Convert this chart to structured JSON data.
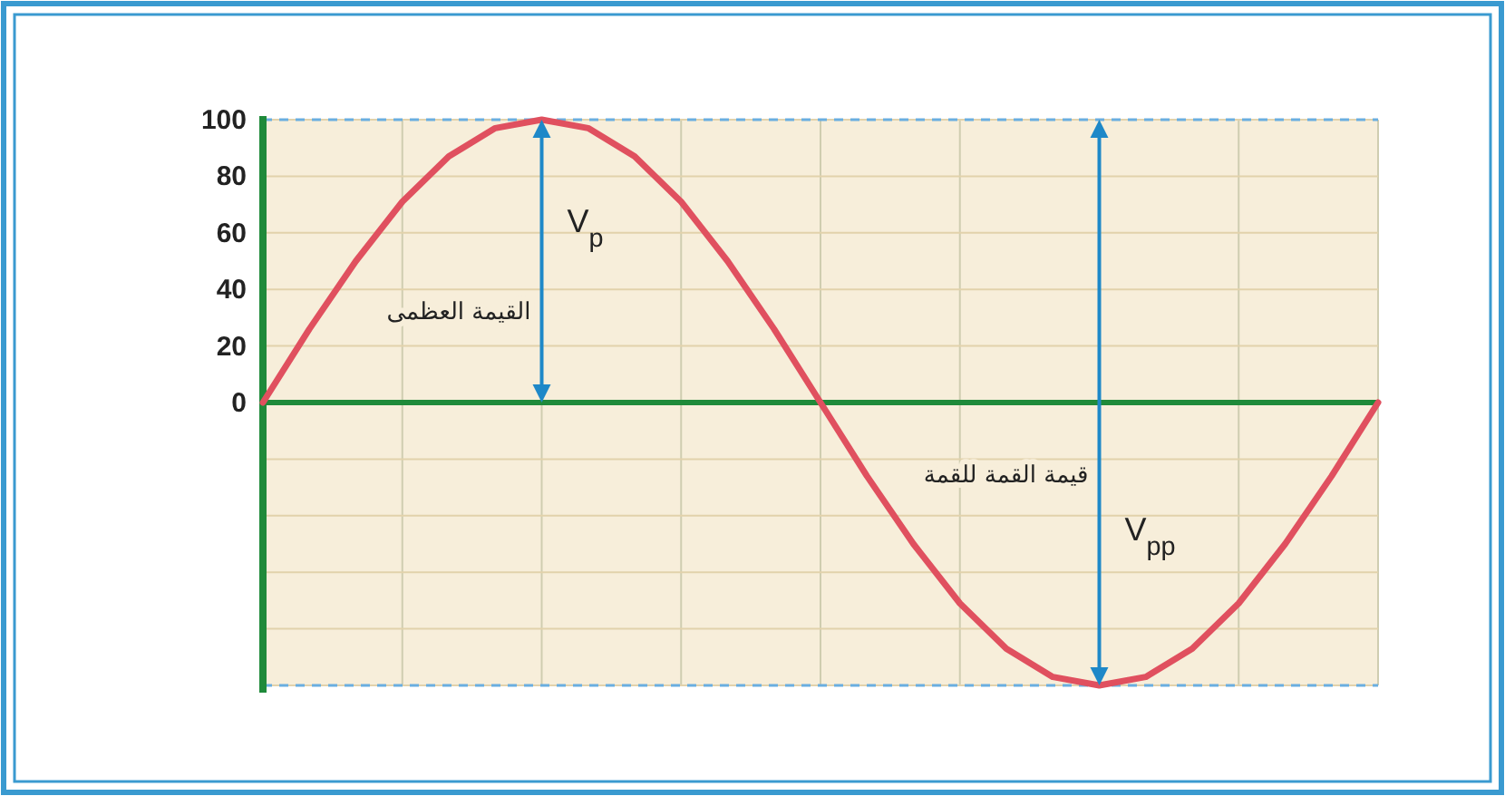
{
  "chart_data": {
    "type": "line",
    "categories": [
      null,
      null,
      null,
      null,
      null,
      null,
      null,
      null,
      null,
      null,
      null,
      null,
      null,
      null,
      null,
      null,
      null,
      null,
      null,
      null,
      null,
      null,
      null,
      null,
      null
    ],
    "series": [
      {
        "color": "#e0505f",
        "values": [
          0,
          26,
          50,
          71,
          87,
          97,
          100,
          97,
          87,
          71,
          50,
          26,
          0,
          -26,
          -50,
          -71,
          -87,
          -97,
          -100,
          -97,
          -87,
          -71,
          -50,
          -26,
          0
        ]
      }
    ],
    "ylim": [
      -100,
      100
    ],
    "yticks": [
      {
        "value": -100,
        "label": null
      },
      {
        "value": -80,
        "label": null
      },
      {
        "value": -60,
        "label": null
      },
      {
        "value": -40,
        "label": null
      },
      {
        "value": -20,
        "label": null
      },
      0,
      20,
      40,
      60,
      80,
      100
    ],
    "tick_labels": "y",
    "grid": true,
    "ref_lines": [
      {
        "axis": "y",
        "value": 0,
        "label": null,
        "color": "#1f8a3a",
        "line_style": "solid"
      },
      {
        "axis": "y",
        "value": 100,
        "label": null,
        "color": "#6aaee0",
        "line_style": "dashed"
      },
      {
        "axis": "y",
        "value": -100,
        "label": null,
        "color": "#6aaee0",
        "line_style": "dashed"
      }
    ],
    "annotations": [
      "V$_{p}$",
      "القيمة العظمى",
      "قيمة القمة للقمة",
      "V$_{pp}$"
    ]
  }
}
